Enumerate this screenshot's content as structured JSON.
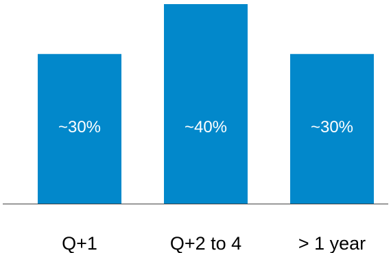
{
  "chart_data": {
    "type": "bar",
    "categories": [
      "Q+1",
      "Q+2 to 4",
      "> 1 year"
    ],
    "values": [
      30,
      40,
      30
    ],
    "data_labels": [
      "~30%",
      "~40%",
      "~30%"
    ],
    "title": "",
    "xlabel": "",
    "ylabel": "",
    "ylim": [
      0,
      40
    ],
    "grid": false,
    "colors": {
      "bar": "#0288CB",
      "axis": "#404040",
      "text": "#000000",
      "data_label": "#FFFFFF"
    }
  }
}
